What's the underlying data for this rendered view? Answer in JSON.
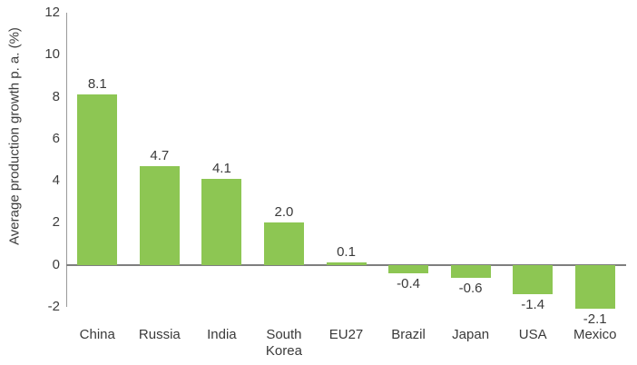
{
  "chart_data": {
    "type": "bar",
    "categories": [
      "China",
      "Russia",
      "India",
      "South Korea",
      "EU27",
      "Brazil",
      "Japan",
      "USA",
      "Mexico"
    ],
    "values": [
      8.1,
      4.7,
      4.1,
      2.0,
      0.1,
      -0.4,
      -0.6,
      -1.4,
      -2.1
    ],
    "value_labels": [
      "8.1",
      "4.7",
      "4.1",
      "2.0",
      "0.1",
      "-0.4",
      "-0.6",
      "-1.4",
      "-2.1"
    ],
    "title": "",
    "xlabel": "",
    "ylabel": "Average production growth p. a. (%)",
    "ylim": [
      -2,
      12
    ],
    "yticks": [
      12,
      10,
      8,
      6,
      4,
      2,
      0,
      -2
    ],
    "grid": false,
    "legend": false,
    "bar_color": "#8dc653",
    "axis_line_color": "#9a9a9a",
    "zero_line_color": "#7f7f7f",
    "text_color": "#3a3a3a"
  }
}
